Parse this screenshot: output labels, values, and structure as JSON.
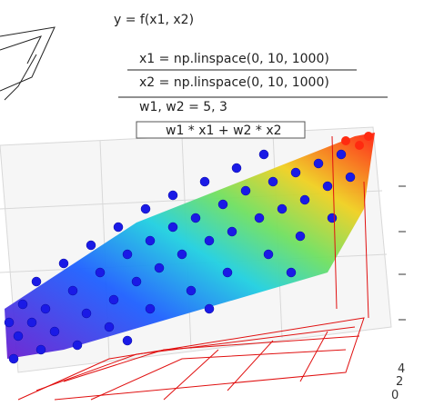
{
  "code": {
    "title": "y = f(x1, x2)",
    "lines": [
      "x1 = np.linspace(0, 10, 1000)",
      "x2 = np.linspace(0, 10, 1000)",
      "w1, w2 = 5, 3",
      "w1 * x1 + w2 * x2"
    ]
  },
  "axis": {
    "ticks": [
      "4",
      "2",
      "0"
    ]
  }
}
